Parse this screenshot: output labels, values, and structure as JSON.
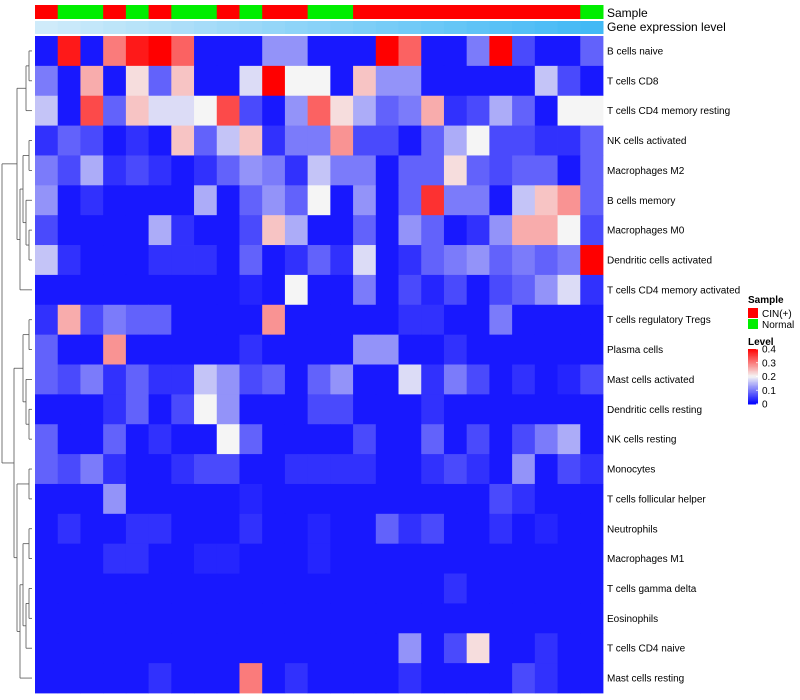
{
  "chart_data": {
    "type": "heatmap",
    "title": "",
    "annotation_tracks": [
      {
        "name": "Sample",
        "values": [
          "CIN(+)",
          "Normal",
          "Normal",
          "CIN(+)",
          "Normal",
          "CIN(+)",
          "Normal",
          "Normal",
          "CIN(+)",
          "Normal",
          "CIN(+)",
          "CIN(+)",
          "Normal",
          "Normal",
          "CIN(+)",
          "CIN(+)",
          "CIN(+)",
          "CIN(+)",
          "CIN(+)",
          "CIN(+)",
          "CIN(+)",
          "CIN(+)",
          "CIN(+)",
          "CIN(+)",
          "Normal"
        ]
      },
      {
        "name": "Gene expression level",
        "values": [
          0.02,
          0.06,
          0.1,
          0.14,
          0.18,
          0.22,
          0.26,
          0.3,
          0.34,
          0.38,
          0.42,
          0.46,
          0.5,
          0.54,
          0.58,
          0.62,
          0.66,
          0.7,
          0.74,
          0.78,
          0.82,
          0.86,
          0.9,
          0.94,
          0.98
        ]
      }
    ],
    "rows": [
      "B cells naive",
      "T cells CD8",
      "T cells CD4 memory resting",
      "NK cells activated",
      "Macrophages M2",
      "B cells memory",
      "Macrophages M0",
      "Dendritic cells activated",
      "T cells CD4 memory activated",
      "T cells regulatory  Tregs",
      "Plasma cells",
      "Mast cells activated",
      "Dendritic cells resting",
      "NK cells resting",
      "Monocytes",
      "T cells follicular helper",
      "Neutrophils",
      "Macrophages M1",
      "T cells gamma delta",
      "Eosinophils",
      "T cells CD4 naive",
      "Mast cells resting"
    ],
    "n_columns": 25,
    "values": [
      [
        0.02,
        0.38,
        0.02,
        0.3,
        0.38,
        0.4,
        0.32,
        0.02,
        0.02,
        0.02,
        0.12,
        0.12,
        0.02,
        0.02,
        0.02,
        0.4,
        0.32,
        0.02,
        0.02,
        0.1,
        0.4,
        0.06,
        0.02,
        0.02,
        0.08
      ],
      [
        0.1,
        0.02,
        0.26,
        0.02,
        0.22,
        0.08,
        0.24,
        0.02,
        0.02,
        0.18,
        0.4,
        0.2,
        0.2,
        0.02,
        0.24,
        0.12,
        0.12,
        0.02,
        0.02,
        0.02,
        0.02,
        0.02,
        0.16,
        0.06,
        0.02
      ],
      [
        0.16,
        0.02,
        0.34,
        0.08,
        0.24,
        0.18,
        0.18,
        0.2,
        0.34,
        0.06,
        0.02,
        0.12,
        0.32,
        0.22,
        0.14,
        0.08,
        0.1,
        0.26,
        0.04,
        0.06,
        0.14,
        0.08,
        0.02,
        0.2,
        0.2
      ],
      [
        0.04,
        0.08,
        0.06,
        0.02,
        0.04,
        0.02,
        0.24,
        0.08,
        0.16,
        0.24,
        0.04,
        0.1,
        0.1,
        0.28,
        0.06,
        0.06,
        0.02,
        0.08,
        0.14,
        0.2,
        0.06,
        0.06,
        0.04,
        0.04,
        0.08
      ],
      [
        0.1,
        0.06,
        0.14,
        0.04,
        0.06,
        0.04,
        0.02,
        0.04,
        0.08,
        0.12,
        0.1,
        0.04,
        0.16,
        0.1,
        0.1,
        0.02,
        0.08,
        0.08,
        0.22,
        0.08,
        0.06,
        0.08,
        0.08,
        0.02,
        0.08
      ],
      [
        0.12,
        0.02,
        0.04,
        0.02,
        0.02,
        0.02,
        0.02,
        0.14,
        0.02,
        0.08,
        0.12,
        0.08,
        0.2,
        0.02,
        0.12,
        0.02,
        0.08,
        0.36,
        0.1,
        0.1,
        0.02,
        0.16,
        0.24,
        0.28,
        0.08
      ],
      [
        0.06,
        0.02,
        0.02,
        0.02,
        0.02,
        0.14,
        0.04,
        0.02,
        0.02,
        0.06,
        0.24,
        0.14,
        0.02,
        0.02,
        0.08,
        0.02,
        0.12,
        0.08,
        0.02,
        0.04,
        0.12,
        0.26,
        0.26,
        0.2,
        0.06
      ],
      [
        0.16,
        0.04,
        0.02,
        0.02,
        0.02,
        0.04,
        0.04,
        0.04,
        0.02,
        0.08,
        0.02,
        0.04,
        0.08,
        0.04,
        0.18,
        0.02,
        0.04,
        0.08,
        0.1,
        0.12,
        0.08,
        0.1,
        0.08,
        0.1,
        0.4
      ],
      [
        0.02,
        0.02,
        0.02,
        0.02,
        0.02,
        0.02,
        0.02,
        0.02,
        0.02,
        0.03,
        0.02,
        0.2,
        0.02,
        0.02,
        0.1,
        0.02,
        0.06,
        0.03,
        0.06,
        0.02,
        0.06,
        0.08,
        0.12,
        0.18,
        0.04
      ],
      [
        0.04,
        0.26,
        0.06,
        0.1,
        0.08,
        0.08,
        0.02,
        0.02,
        0.02,
        0.02,
        0.28,
        0.02,
        0.02,
        0.02,
        0.02,
        0.02,
        0.04,
        0.04,
        0.02,
        0.02,
        0.1,
        0.02,
        0.02,
        0.02,
        0.02
      ],
      [
        0.08,
        0.02,
        0.02,
        0.28,
        0.02,
        0.02,
        0.02,
        0.02,
        0.02,
        0.04,
        0.02,
        0.02,
        0.02,
        0.02,
        0.12,
        0.12,
        0.02,
        0.02,
        0.04,
        0.02,
        0.02,
        0.02,
        0.02,
        0.02,
        0.02
      ],
      [
        0.08,
        0.06,
        0.1,
        0.04,
        0.08,
        0.04,
        0.04,
        0.16,
        0.12,
        0.06,
        0.08,
        0.02,
        0.08,
        0.12,
        0.02,
        0.02,
        0.18,
        0.04,
        0.1,
        0.06,
        0.02,
        0.04,
        0.02,
        0.03,
        0.06
      ],
      [
        0.02,
        0.02,
        0.02,
        0.04,
        0.08,
        0.02,
        0.06,
        0.2,
        0.12,
        0.02,
        0.02,
        0.02,
        0.06,
        0.06,
        0.02,
        0.02,
        0.02,
        0.04,
        0.02,
        0.02,
        0.02,
        0.02,
        0.02,
        0.02,
        0.02
      ],
      [
        0.08,
        0.02,
        0.02,
        0.08,
        0.02,
        0.04,
        0.02,
        0.02,
        0.2,
        0.08,
        0.02,
        0.02,
        0.02,
        0.02,
        0.06,
        0.02,
        0.02,
        0.08,
        0.02,
        0.06,
        0.02,
        0.06,
        0.1,
        0.14,
        0.02
      ],
      [
        0.08,
        0.06,
        0.1,
        0.04,
        0.02,
        0.02,
        0.04,
        0.06,
        0.06,
        0.02,
        0.02,
        0.04,
        0.04,
        0.04,
        0.04,
        0.02,
        0.02,
        0.04,
        0.06,
        0.04,
        0.02,
        0.12,
        0.02,
        0.06,
        0.04
      ],
      [
        0.02,
        0.02,
        0.02,
        0.12,
        0.02,
        0.02,
        0.02,
        0.02,
        0.02,
        0.03,
        0.02,
        0.02,
        0.02,
        0.02,
        0.02,
        0.02,
        0.02,
        0.02,
        0.02,
        0.02,
        0.06,
        0.04,
        0.02,
        0.02,
        0.02
      ],
      [
        0.02,
        0.04,
        0.02,
        0.02,
        0.04,
        0.04,
        0.02,
        0.02,
        0.02,
        0.04,
        0.02,
        0.02,
        0.03,
        0.02,
        0.02,
        0.08,
        0.04,
        0.06,
        0.02,
        0.02,
        0.04,
        0.02,
        0.03,
        0.02,
        0.02
      ],
      [
        0.02,
        0.02,
        0.02,
        0.04,
        0.04,
        0.02,
        0.02,
        0.03,
        0.03,
        0.02,
        0.02,
        0.02,
        0.03,
        0.02,
        0.02,
        0.02,
        0.02,
        0.02,
        0.02,
        0.02,
        0.02,
        0.02,
        0.02,
        0.02,
        0.02
      ],
      [
        0.02,
        0.02,
        0.02,
        0.02,
        0.02,
        0.02,
        0.02,
        0.02,
        0.02,
        0.02,
        0.02,
        0.02,
        0.02,
        0.02,
        0.02,
        0.02,
        0.02,
        0.02,
        0.04,
        0.02,
        0.02,
        0.02,
        0.02,
        0.02,
        0.02
      ],
      [
        0.02,
        0.02,
        0.02,
        0.02,
        0.02,
        0.02,
        0.02,
        0.02,
        0.02,
        0.02,
        0.02,
        0.02,
        0.02,
        0.02,
        0.02,
        0.02,
        0.02,
        0.02,
        0.02,
        0.02,
        0.02,
        0.02,
        0.02,
        0.02,
        0.02
      ],
      [
        0.02,
        0.02,
        0.02,
        0.02,
        0.02,
        0.02,
        0.02,
        0.02,
        0.02,
        0.02,
        0.02,
        0.02,
        0.02,
        0.02,
        0.02,
        0.02,
        0.12,
        0.02,
        0.06,
        0.22,
        0.02,
        0.02,
        0.04,
        0.02,
        0.02
      ],
      [
        0.02,
        0.02,
        0.02,
        0.02,
        0.02,
        0.04,
        0.02,
        0.02,
        0.02,
        0.3,
        0.02,
        0.04,
        0.02,
        0.02,
        0.02,
        0.02,
        0.04,
        0.02,
        0.02,
        0.02,
        0.02,
        0.06,
        0.04,
        0.02,
        0.02
      ]
    ],
    "legends": {
      "sample": {
        "title": "Sample",
        "entries": [
          {
            "label": "CIN(+)",
            "color": "#ff0000"
          },
          {
            "label": "Normal",
            "color": "#00ee00"
          }
        ]
      },
      "level": {
        "title": "Level",
        "range": [
          0,
          0.4
        ],
        "ticks": [
          {
            "value": 0.4,
            "label": "0.4"
          },
          {
            "value": 0.3,
            "label": "0.3"
          },
          {
            "value": 0.2,
            "label": "0.2"
          },
          {
            "value": 0.1,
            "label": "0.1"
          },
          {
            "value": 0,
            "label": "0"
          }
        ]
      }
    },
    "colors": {
      "low": "#0000ff",
      "mid": "#f5f5f5",
      "high": "#ff0000",
      "expr_low": "#d2ecfa",
      "expr_high": "#3fb8f5"
    },
    "dendrogram": "row"
  }
}
